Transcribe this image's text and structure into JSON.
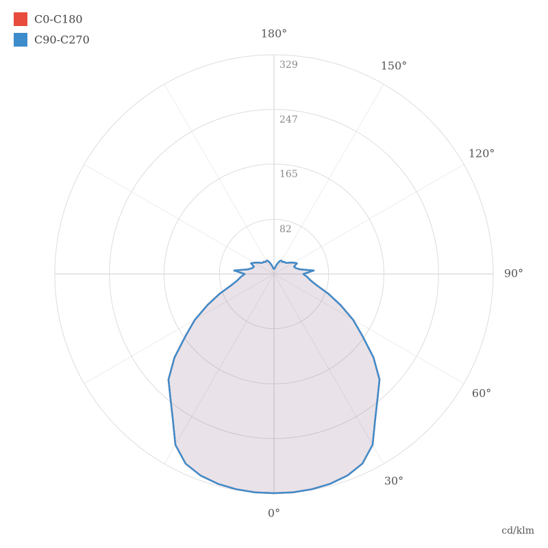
{
  "chart_data": {
    "type": "polar",
    "series": [
      {
        "name": "C0-C180",
        "color": "#e74c3c",
        "values": [
          329,
          329,
          328,
          326,
          322,
          314,
          296,
          265,
          242,
          224,
          195,
          162,
          137,
          110,
          87,
          67,
          56,
          50,
          44,
          60,
          40,
          34,
          32,
          38,
          34,
          30,
          26,
          24,
          24,
          22,
          23,
          22,
          18,
          14,
          10,
          8,
          7
        ]
      },
      {
        "name": "C90-C270",
        "color": "#3d8ccc",
        "values": [
          329,
          329,
          328,
          326,
          322,
          314,
          296,
          265,
          242,
          224,
          195,
          162,
          137,
          110,
          87,
          67,
          56,
          50,
          44,
          60,
          40,
          34,
          32,
          38,
          34,
          30,
          26,
          24,
          24,
          22,
          23,
          22,
          18,
          14,
          10,
          8,
          7
        ]
      }
    ],
    "angles": [
      0,
      5,
      10,
      15,
      20,
      25,
      30,
      35,
      40,
      45,
      50,
      55,
      60,
      65,
      70,
      75,
      80,
      85,
      90,
      95,
      100,
      105,
      110,
      115,
      120,
      125,
      130,
      135,
      140,
      145,
      150,
      155,
      160,
      165,
      170,
      175,
      180
    ],
    "rlim": [
      0,
      329
    ],
    "rticks": [
      82,
      165,
      247,
      329
    ],
    "thetaticks": [
      {
        "value": 0,
        "label": "0°"
      },
      {
        "value": 30,
        "label": "30°"
      },
      {
        "value": 60,
        "label": "60°"
      },
      {
        "value": 90,
        "label": "90°"
      },
      {
        "value": 120,
        "label": "120°"
      },
      {
        "value": 150,
        "label": "150°"
      },
      {
        "value": 180,
        "label": "180°"
      }
    ],
    "unit_label": "cd/klm",
    "grid": true
  }
}
